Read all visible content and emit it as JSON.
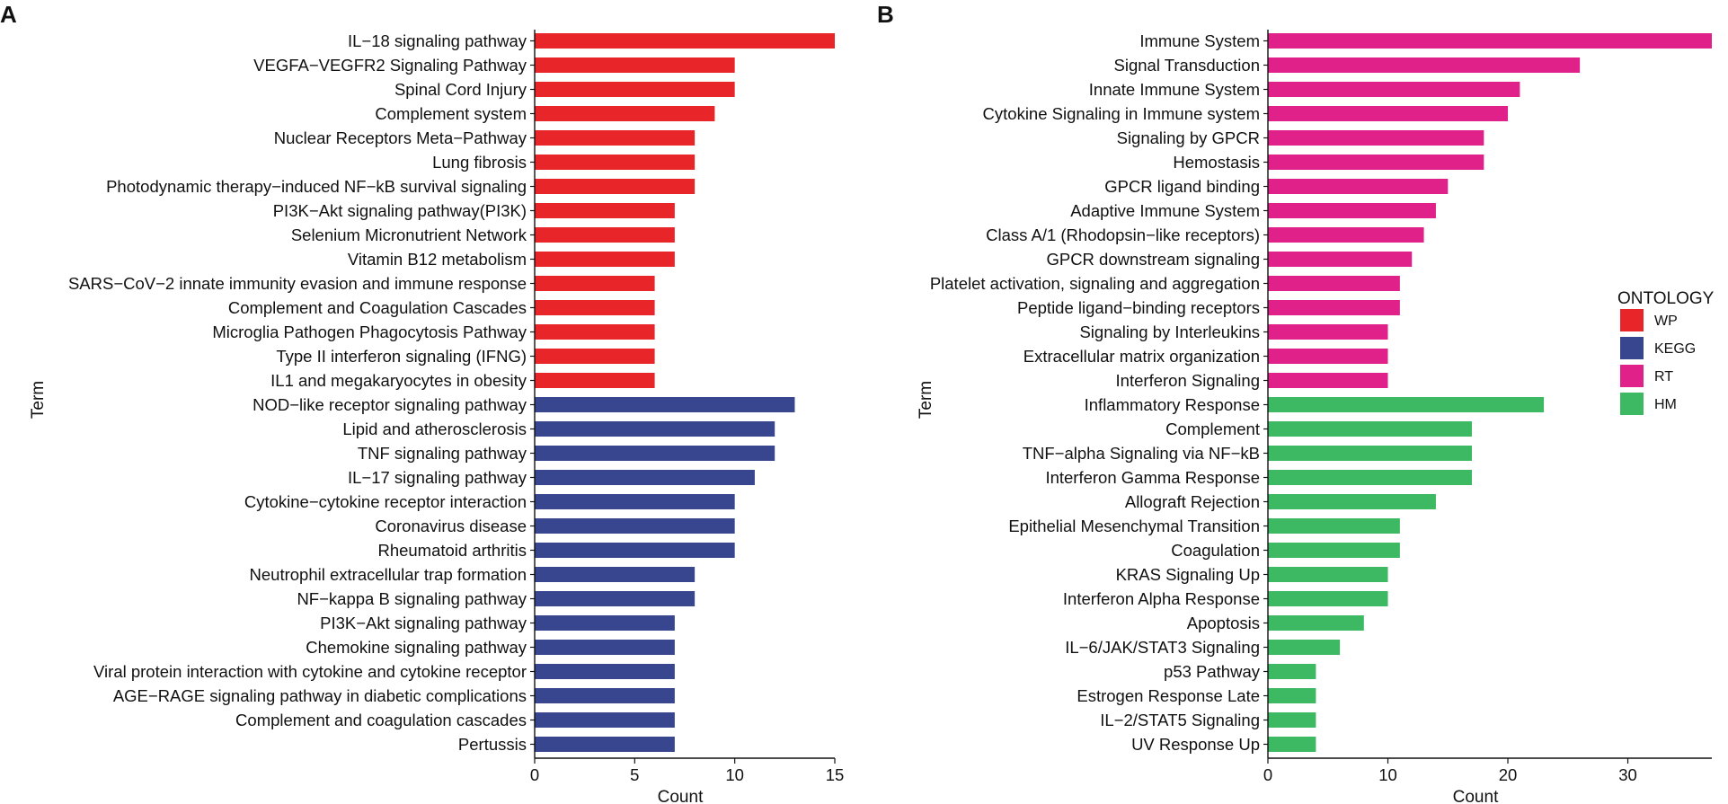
{
  "chart_data": [
    {
      "panel_label": "A",
      "type": "bar",
      "orientation": "horizontal",
      "xlabel": "Count",
      "ylabel": "Term",
      "xlim": [
        0,
        15
      ],
      "xticks": [
        0,
        5,
        10,
        15
      ],
      "grid": false,
      "series": [
        {
          "name": "WP",
          "categories": [
            "IL−18 signaling pathway",
            "VEGFA−VEGFR2 Signaling Pathway",
            "Spinal Cord Injury",
            "Complement system",
            "Nuclear Receptors Meta−Pathway",
            "Lung fibrosis",
            "Photodynamic therapy−induced NF−kB survival signaling",
            "PI3K−Akt signaling pathway(PI3K)",
            "Selenium Micronutrient Network",
            "Vitamin B12 metabolism",
            "SARS−CoV−2 innate immunity evasion and immune response",
            "Complement and Coagulation Cascades",
            "Microglia Pathogen Phagocytosis Pathway",
            "Type II interferon signaling (IFNG)",
            "IL1 and megakaryocytes in obesity"
          ],
          "values": [
            15,
            10,
            10,
            9,
            8,
            8,
            8,
            7,
            7,
            7,
            6,
            6,
            6,
            6,
            6
          ]
        },
        {
          "name": "KEGG",
          "categories": [
            "NOD−like receptor signaling pathway",
            "Lipid and atherosclerosis",
            "TNF signaling pathway",
            "IL−17 signaling pathway",
            "Cytokine−cytokine receptor interaction",
            "Coronavirus disease",
            "Rheumatoid arthritis",
            "Neutrophil extracellular trap formation",
            "NF−kappa B signaling pathway",
            "PI3K−Akt signaling pathway",
            "Chemokine signaling pathway",
            "Viral protein interaction with cytokine and cytokine receptor",
            "AGE−RAGE signaling pathway in diabetic complications",
            "Complement and coagulation cascades",
            "Pertussis"
          ],
          "values": [
            13,
            12,
            12,
            11,
            10,
            10,
            10,
            8,
            8,
            7,
            7,
            7,
            7,
            7,
            7
          ]
        }
      ]
    },
    {
      "panel_label": "B",
      "type": "bar",
      "orientation": "horizontal",
      "xlabel": "Count",
      "ylabel": "Term",
      "xlim": [
        0,
        37
      ],
      "xticks": [
        0,
        10,
        20,
        30
      ],
      "grid": false,
      "series": [
        {
          "name": "RT",
          "categories": [
            "Immune System",
            "Signal Transduction",
            "Innate Immune System",
            "Cytokine Signaling in Immune system",
            "Signaling by GPCR",
            "Hemostasis",
            "GPCR ligand binding",
            "Adaptive Immune System",
            "Class A/1 (Rhodopsin−like receptors)",
            "GPCR downstream signaling",
            "Platelet activation, signaling and aggregation",
            "Peptide ligand−binding receptors",
            "Signaling by Interleukins",
            "Extracellular matrix organization",
            "Interferon Signaling"
          ],
          "values": [
            37,
            26,
            21,
            20,
            18,
            18,
            15,
            14,
            13,
            12,
            11,
            11,
            10,
            10,
            10
          ]
        },
        {
          "name": "HM",
          "categories": [
            "Inflammatory Response",
            "Complement",
            "TNF−alpha Signaling via NF−kB",
            "Interferon Gamma Response",
            "Allograft Rejection",
            "Epithelial Mesenchymal Transition",
            "Coagulation",
            "KRAS Signaling Up",
            "Interferon Alpha Response",
            "Apoptosis",
            "IL−6/JAK/STAT3 Signaling",
            "p53 Pathway",
            "Estrogen Response Late",
            "IL−2/STAT5 Signaling",
            "UV Response Up"
          ],
          "values": [
            23,
            17,
            17,
            17,
            14,
            11,
            11,
            10,
            10,
            8,
            6,
            4,
            4,
            4,
            4
          ]
        }
      ]
    }
  ],
  "legend": {
    "title": "ONTOLOGY",
    "placement": "right",
    "items": [
      {
        "label": "WP",
        "color": "#e8262a"
      },
      {
        "label": "KEGG",
        "color": "#37468f"
      },
      {
        "label": "RT",
        "color": "#e0218a"
      },
      {
        "label": "HM",
        "color": "#3db863"
      }
    ]
  }
}
